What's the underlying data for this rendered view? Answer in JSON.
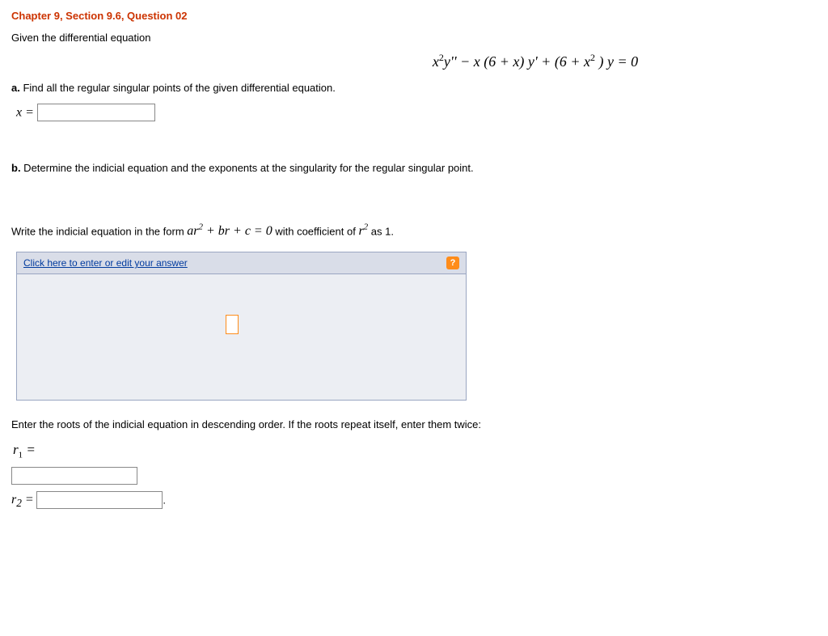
{
  "title": "Chapter 9, Section 9.6, Question 02",
  "intro": "Given the differential equation",
  "equation_html": "x<sup>2</sup>y'' − x (6 + x) y' + (6 + x<sup>2</sup> ) y = 0",
  "part_a": {
    "label": "a.",
    "text": " Find all the regular singular points of the given differential equation.",
    "var": "x ="
  },
  "part_b": {
    "label": "b.",
    "text": " Determine the indicial equation and the exponents at the singularity for the regular singular point."
  },
  "indicial_instruction_pre": "Write the indicial equation in the form ",
  "indicial_form_html": "ar<sup>2</sup> + br + c = 0",
  "indicial_instruction_mid": " with coefficient of ",
  "indicial_coeff_html": "r<sup>2</sup>",
  "indicial_instruction_post": " as 1.",
  "answer_panel": {
    "link_text": "Click here to enter or edit your answer",
    "help_glyph": "?"
  },
  "roots_instruction": "Enter the roots of the indicial equation in descending order. If the roots repeat itself, enter them twice:",
  "r1_label_html": "r<sub>1</sub> =",
  "r2_label_html": "r<sub>2</sub> =",
  "period": ".",
  "colors": {
    "title_color": "#cc3300",
    "panel_border": "#9aa6c2",
    "panel_header_bg": "#d9dde8",
    "panel_body_bg": "#eceef3",
    "help_icon_bg": "#ff8c1a",
    "placeholder_border": "#ff8c1a",
    "link_color": "#003a9e"
  }
}
